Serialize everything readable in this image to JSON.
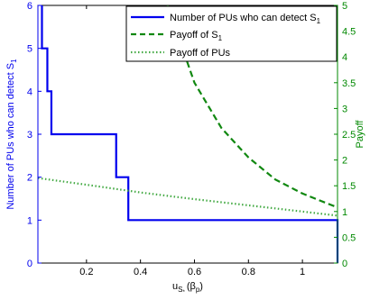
{
  "chart_data": {
    "type": "line",
    "x_range": [
      0.02,
      1.13
    ],
    "x_ticks": [
      0.2,
      0.4,
      0.6,
      0.8,
      1.0
    ],
    "x_tick_labels": [
      "0.2",
      "0.4",
      "0.6",
      "0.8",
      "1"
    ],
    "x_label": "u_{S_*}(β_p)",
    "x_label_parts": {
      "main": "u",
      "sub": "S",
      "subsub": "*",
      "tail": "(β",
      "tail_sub": "p",
      "close": ")"
    },
    "y_left": {
      "label": "Number of PUs who can detect S_1",
      "label_main": "Number of PUs who can detect S",
      "label_sub": "1",
      "range": [
        0,
        6
      ],
      "ticks": [
        0,
        1,
        2,
        3,
        4,
        5,
        6
      ],
      "tick_labels": [
        "0",
        "1",
        "2",
        "3",
        "4",
        "5",
        "6"
      ],
      "color": "#0000ee"
    },
    "y_right": {
      "label": "Payoff",
      "range": [
        0,
        5
      ],
      "ticks": [
        0,
        0.5,
        1,
        1.5,
        2,
        2.5,
        3,
        3.5,
        4,
        4.5,
        5
      ],
      "tick_labels": [
        "0",
        "0.5",
        "1",
        "1.5",
        "2",
        "2.5",
        "3",
        "3.5",
        "4",
        "4.5",
        "5"
      ],
      "color": "#008800"
    },
    "grid": false,
    "legend_position": "top-right",
    "series": [
      {
        "name": "Number of PUs who can detect S_1",
        "legend_main": "Number of PUs who can detect S",
        "legend_sub": "1",
        "axis": "left",
        "style": "solid-step",
        "color": "#0000ee",
        "x": [
          0.035,
          0.035,
          0.055,
          0.055,
          0.07,
          0.07,
          0.31,
          0.31,
          0.355,
          0.355,
          1.13,
          1.13
        ],
        "y": [
          6,
          5,
          5,
          4,
          4,
          3,
          3,
          2,
          2,
          1,
          1,
          0
        ]
      },
      {
        "name": "Payoff of S_1",
        "legend_main": "Payoff of S",
        "legend_sub": "1",
        "axis": "right",
        "style": "dashed",
        "color": "#118811",
        "x": [
          0.5,
          0.6,
          0.7,
          0.8,
          0.9,
          1.0,
          1.1,
          1.13
        ],
        "y": [
          5.0,
          3.5,
          2.62,
          2.05,
          1.62,
          1.35,
          1.14,
          1.08
        ]
      },
      {
        "name": "Payoff of PUs",
        "legend_main": "Payoff of PUs",
        "legend_sub": "",
        "axis": "right",
        "style": "dotted",
        "color": "#44aa44",
        "x": [
          0.02,
          0.2,
          0.4,
          0.6,
          0.8,
          1.0,
          1.13
        ],
        "y": [
          1.65,
          1.52,
          1.37,
          1.24,
          1.12,
          1.0,
          0.92
        ]
      }
    ]
  }
}
